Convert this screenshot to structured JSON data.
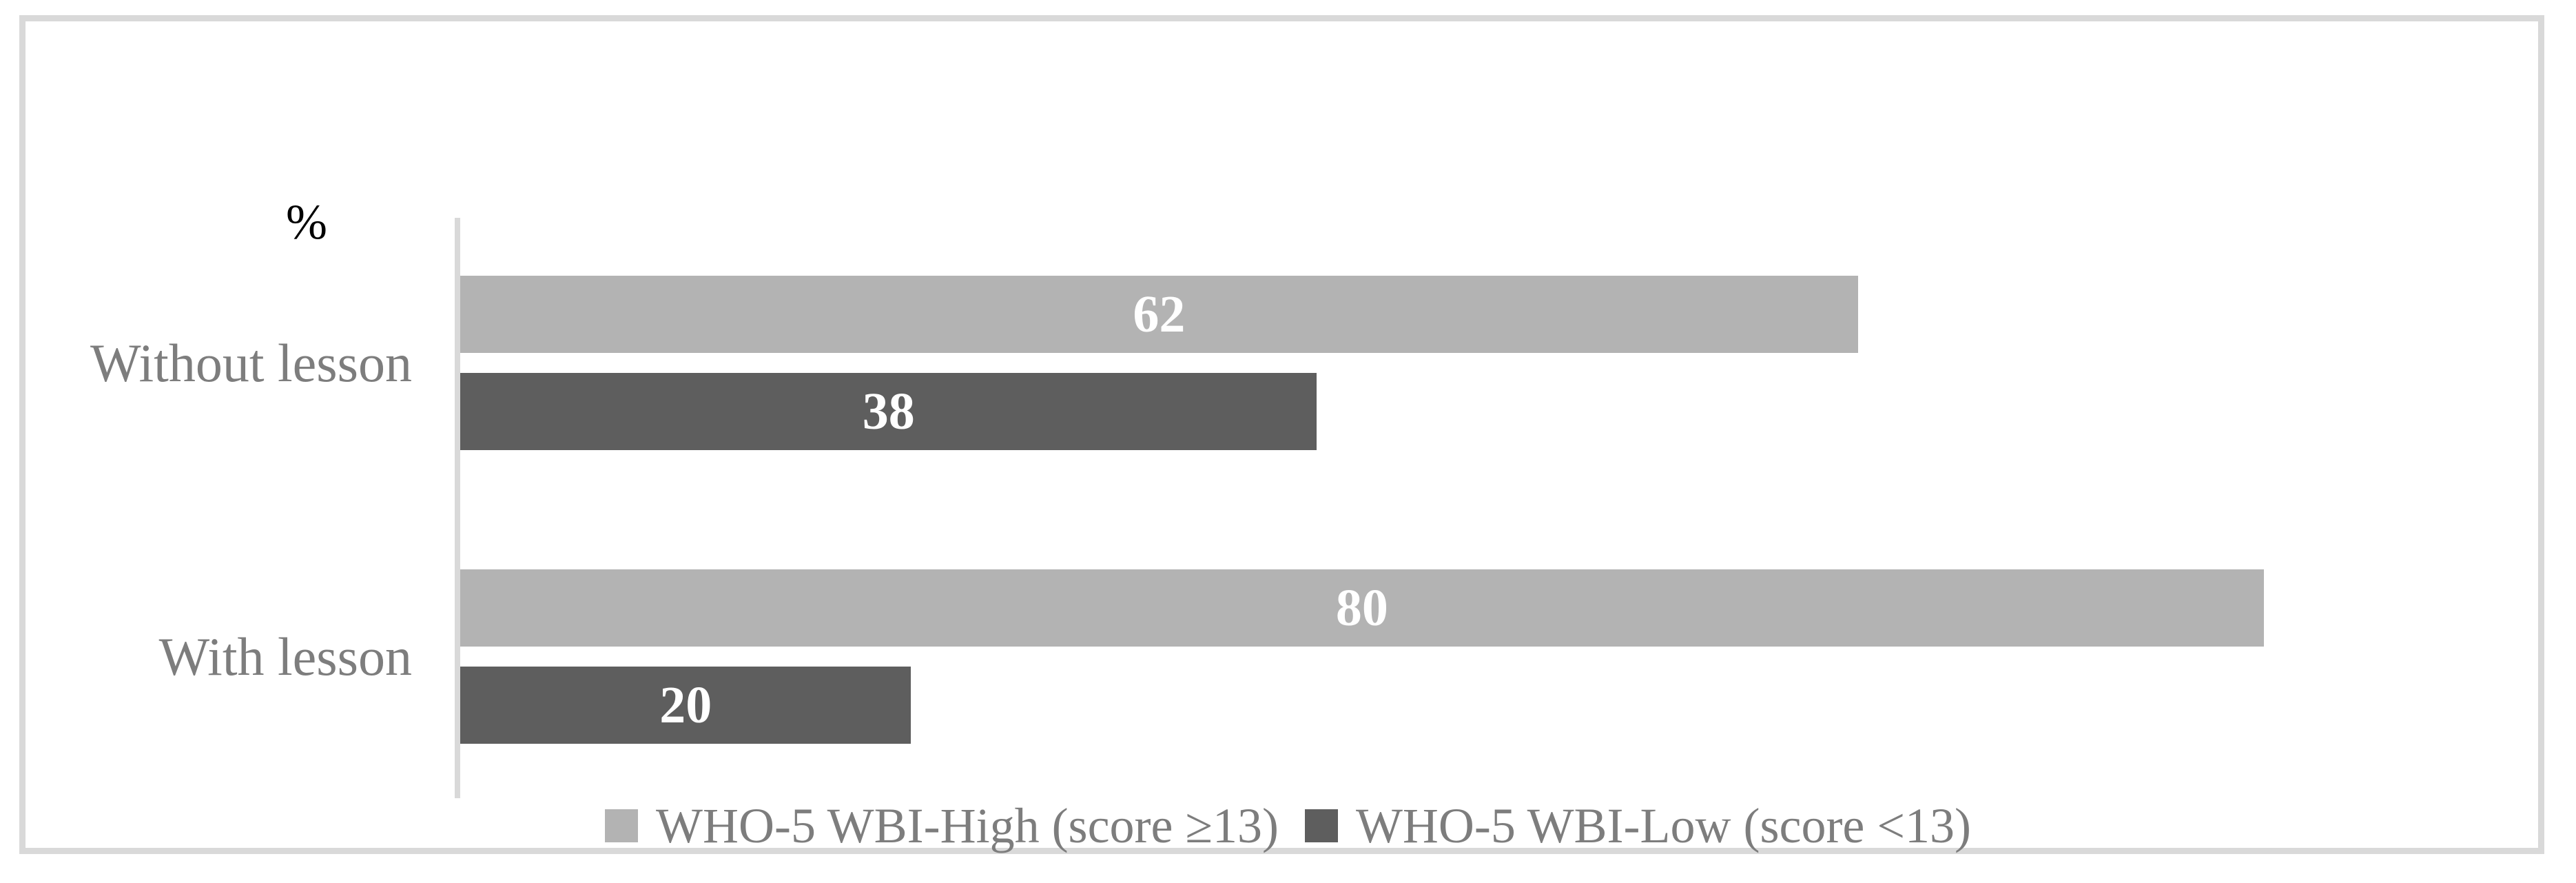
{
  "figure": {
    "background_color": "#ffffff",
    "frame_color": "#d9d9d9",
    "axis_line_color": "#d9d9d9",
    "text_color": "#7d7d7d",
    "value_label_color": "#ffffff"
  },
  "chart_data": {
    "type": "bar",
    "orientation": "horizontal",
    "title": "",
    "value_axis_label": "%",
    "categories": [
      "Without lesson",
      "With lesson"
    ],
    "series": [
      {
        "name": "WHO-5 WBI-High (score ≥13)",
        "color": "#b3b3b3",
        "values": [
          62,
          80
        ]
      },
      {
        "name": "WHO-5 WBI-Low (score <13)",
        "color": "#5e5e5e",
        "values": [
          38,
          20
        ]
      }
    ],
    "value_axis_range": [
      0,
      90
    ],
    "grid": false,
    "legend_position": "bottom",
    "data_labels": "inside center, white bold"
  }
}
